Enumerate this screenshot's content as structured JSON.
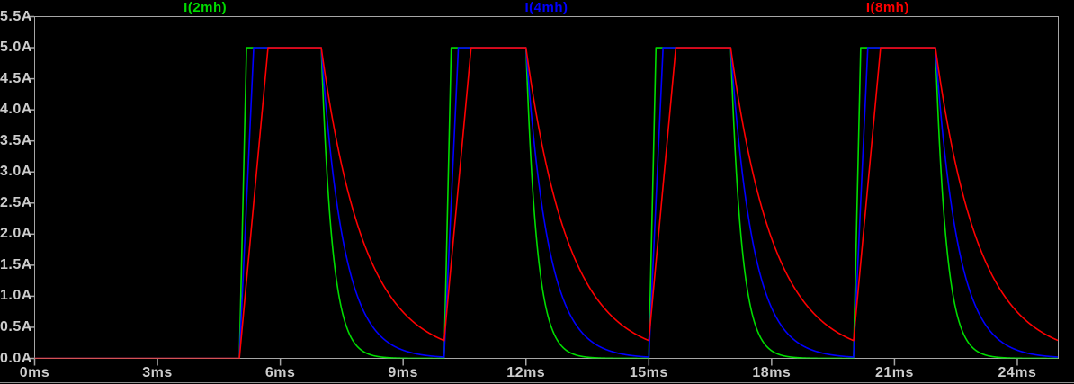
{
  "window": {
    "background": "#000000",
    "plot_border_color": "#A6A6A6",
    "tick_color": "#A6A6A6",
    "axis_text_color": "#CCCCCC",
    "bottom_edge_color": "#8E8E8E"
  },
  "chart_data": {
    "type": "line",
    "title": "",
    "grid": false,
    "legend_position": "top",
    "x_axis": {
      "unit": "ms",
      "min": 0,
      "max": 25,
      "tick_step": 3,
      "ticks": [
        {
          "value": 0,
          "label": "0ms"
        },
        {
          "value": 3,
          "label": "3ms"
        },
        {
          "value": 6,
          "label": "6ms"
        },
        {
          "value": 9,
          "label": "9ms"
        },
        {
          "value": 12,
          "label": "12ms"
        },
        {
          "value": 15,
          "label": "15ms"
        },
        {
          "value": 18,
          "label": "18ms"
        },
        {
          "value": 21,
          "label": "21ms"
        },
        {
          "value": 24,
          "label": "24ms"
        }
      ]
    },
    "y_axis": {
      "unit": "A",
      "min": 0,
      "max": 5.5,
      "tick_step": 0.5,
      "ticks": [
        {
          "value": 5.5,
          "label": "5.5A"
        },
        {
          "value": 5.0,
          "label": "5.0A"
        },
        {
          "value": 4.5,
          "label": "4.5A"
        },
        {
          "value": 4.0,
          "label": "4.0A"
        },
        {
          "value": 3.5,
          "label": "3.5A"
        },
        {
          "value": 3.0,
          "label": "3.0A"
        },
        {
          "value": 2.5,
          "label": "2.5A"
        },
        {
          "value": 2.0,
          "label": "2.0A"
        },
        {
          "value": 1.5,
          "label": "1.5A"
        },
        {
          "value": 1.0,
          "label": "1.0A"
        },
        {
          "value": 0.5,
          "label": "0.5A"
        },
        {
          "value": 0.0,
          "label": "0.0A"
        }
      ]
    },
    "pulse": {
      "amplitude_A": 5.0,
      "first_rise_ms": 5.0,
      "period_ms": 5.0,
      "on_time_ms": 2.0,
      "end_ms": 25.0
    },
    "series": [
      {
        "name": "I(2mh)",
        "color": "#00DC00",
        "inductance_mH": 2,
        "rise_time_ms": 0.175,
        "decay_tau_ms": 0.27
      },
      {
        "name": "I(4mh)",
        "color": "#0000FF",
        "inductance_mH": 4,
        "rise_time_ms": 0.35,
        "decay_tau_ms": 0.55
      },
      {
        "name": "I(8mh)",
        "color": "#FF0000",
        "inductance_mH": 8,
        "rise_time_ms": 0.7,
        "decay_tau_ms": 1.05
      }
    ]
  }
}
